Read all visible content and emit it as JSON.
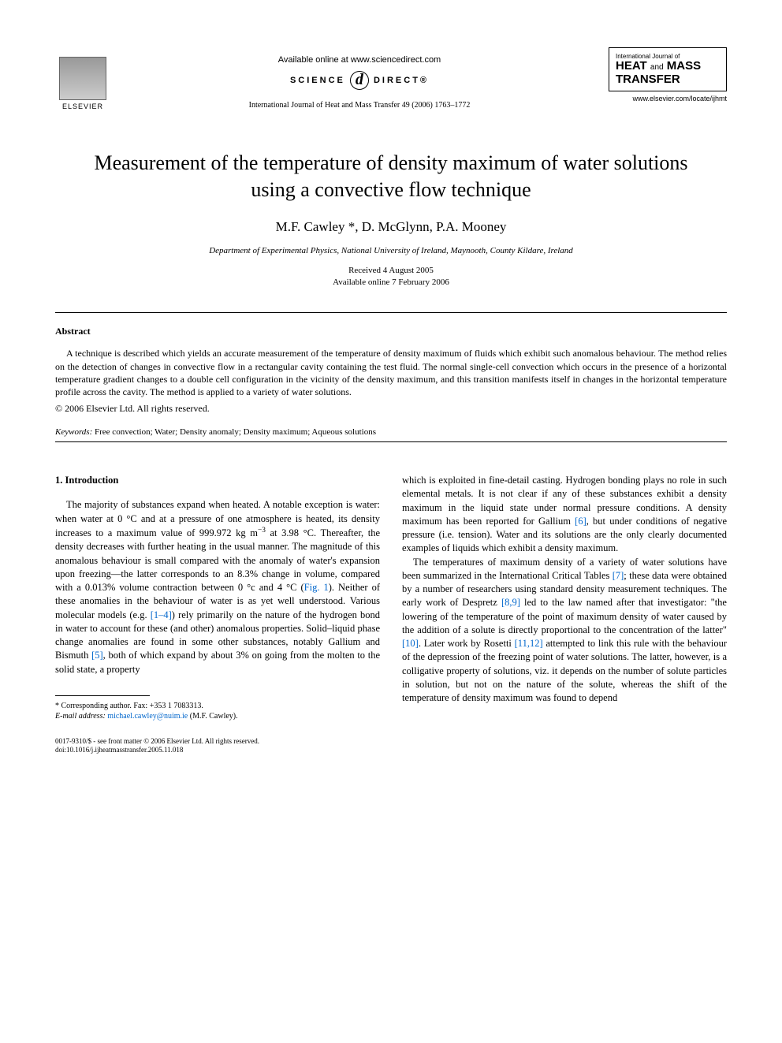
{
  "header": {
    "available_text": "Available online at www.sciencedirect.com",
    "science_direct_left": "SCIENCE",
    "science_direct_right": "DIRECT®",
    "journal_ref": "International Journal of Heat and Mass Transfer 49 (2006) 1763–1772",
    "publisher_name": "ELSEVIER",
    "journal_box_small": "International Journal of",
    "journal_box_line1": "HEAT",
    "journal_box_and": "and",
    "journal_box_line1b": "MASS",
    "journal_box_line2": "TRANSFER",
    "locate_url": "www.elsevier.com/locate/ijhmt"
  },
  "title": "Measurement of the temperature of density maximum of water solutions using a convective flow technique",
  "authors": "M.F. Cawley *, D. McGlynn, P.A. Mooney",
  "affiliation": "Department of Experimental Physics, National University of Ireland, Maynooth, County Kildare, Ireland",
  "dates": {
    "received": "Received 4 August 2005",
    "online": "Available online 7 February 2006"
  },
  "abstract": {
    "heading": "Abstract",
    "body": "A technique is described which yields an accurate measurement of the temperature of density maximum of fluids which exhibit such anomalous behaviour. The method relies on the detection of changes in convective flow in a rectangular cavity containing the test fluid. The normal single-cell convection which occurs in the presence of a horizontal temperature gradient changes to a double cell configuration in the vicinity of the density maximum, and this transition manifests itself in changes in the horizontal temperature profile across the cavity. The method is applied to a variety of water solutions.",
    "copyright": "© 2006 Elsevier Ltd. All rights reserved."
  },
  "keywords": {
    "label": "Keywords:",
    "text": " Free convection; Water; Density anomaly; Density maximum; Aqueous solutions"
  },
  "section1": {
    "heading": "1. Introduction",
    "col1_p1a": "The majority of substances expand when heated. A notable exception is water: when water at 0 °C and at a pressure of one atmosphere is heated, its density increases to a maximum value of 999.972 kg m",
    "col1_p1_exp": "−3",
    "col1_p1b": " at 3.98 °C. Thereafter, the density decreases with further heating in the usual manner. The magnitude of this anomalous behaviour is small compared with the anomaly of water's expansion upon freezing—the latter corresponds to an 8.3% change in volume, compared with a 0.013% volume contraction between 0 °c and 4 °C (",
    "col1_fig1": "Fig. 1",
    "col1_p1c": "). Neither of these anomalies in the behaviour of water is as yet well understood. Various molecular models (e.g. ",
    "col1_ref14": "[1–4]",
    "col1_p1d": ") rely primarily on the nature of the hydrogen bond in water to account for these (and other) anomalous properties. Solid–liquid phase change anomalies are found in some other substances, notably Gallium and Bismuth ",
    "col1_ref5": "[5]",
    "col1_p1e": ", both of which expand by about 3% on going from the molten to the solid state, a property",
    "col2_p1a": "which is exploited in fine-detail casting. Hydrogen bonding plays no role in such elemental metals. It is not clear if any of these substances exhibit a density maximum in the liquid state under normal pressure conditions. A density maximum has been reported for Gallium ",
    "col2_ref6": "[6]",
    "col2_p1b": ", but under conditions of negative pressure (i.e. tension). Water and its solutions are the only clearly documented examples of liquids which exhibit a density maximum.",
    "col2_p2a": "The temperatures of maximum density of a variety of water solutions have been summarized in the International Critical Tables ",
    "col2_ref7": "[7]",
    "col2_p2b": "; these data were obtained by a number of researchers using standard density measurement techniques. The early work of Despretz ",
    "col2_ref89": "[8,9]",
    "col2_p2c": " led to the law named after that investigator: \"the lowering of the temperature of the point of maximum density of water caused by the addition of a solute is directly proportional to the concentration of the latter\" ",
    "col2_ref10": "[10]",
    "col2_p2d": ". Later work by Rosetti ",
    "col2_ref1112": "[11,12]",
    "col2_p2e": " attempted to link this rule with the behaviour of the depression of the freezing point of water solutions. The latter, however, is a colligative property of solutions, viz. it depends on the number of solute particles in solution, but not on the nature of the solute, whereas the shift of the temperature of density maximum was found to depend"
  },
  "footnote": {
    "corr": "* Corresponding author. Fax: +353 1 7083313.",
    "email_label": "E-mail address: ",
    "email": "michael.cawley@nuim.ie",
    "email_suffix": " (M.F. Cawley)."
  },
  "bottom": {
    "line1": "0017-9310/$ - see front matter © 2006 Elsevier Ltd. All rights reserved.",
    "line2": "doi:10.1016/j.ijheatmasstransfer.2005.11.018"
  },
  "colors": {
    "link": "#0066cc",
    "text": "#000000",
    "background": "#ffffff"
  },
  "typography": {
    "title_fontsize": 26,
    "author_fontsize": 17,
    "body_fontsize": 12.5,
    "abstract_fontsize": 12,
    "footnote_fontsize": 10
  }
}
